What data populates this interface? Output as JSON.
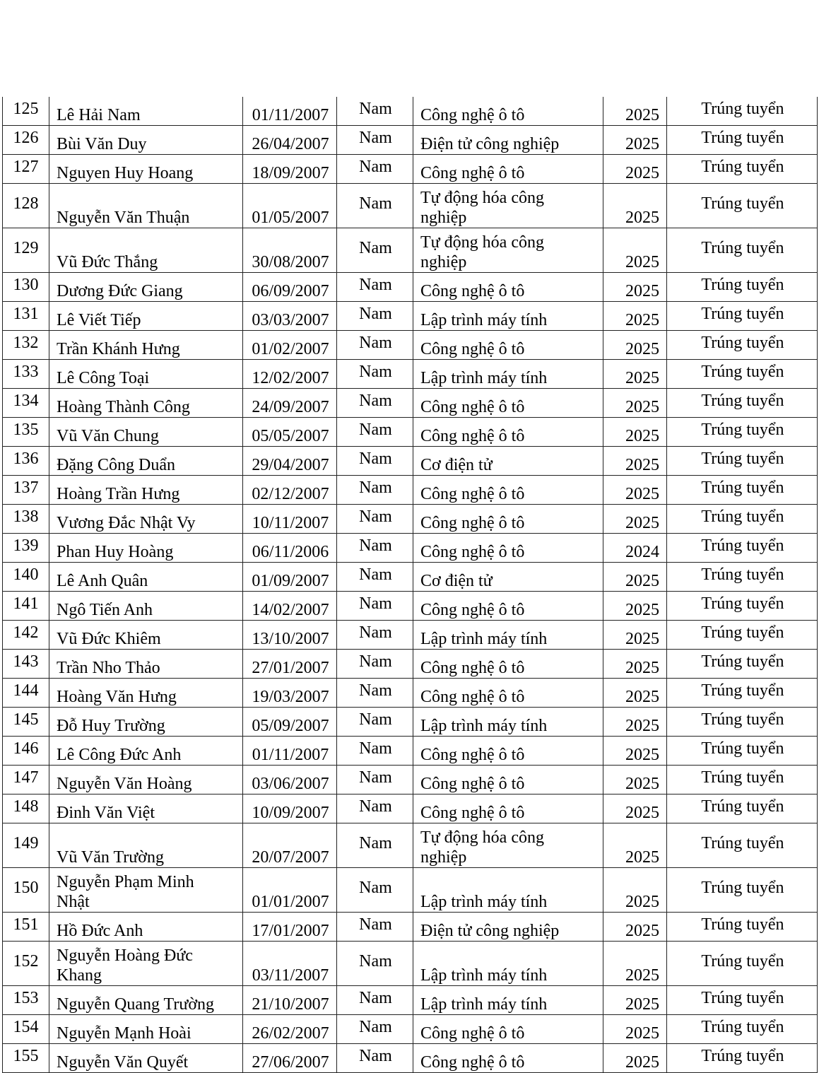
{
  "rows": [
    {
      "no": "125",
      "name": "Lê Hải Nam",
      "dob": "01/11/2007",
      "sex": "Nam",
      "major": "Công nghệ ô tô",
      "year": "2025",
      "result": "Trúng tuyển"
    },
    {
      "no": "126",
      "name": "Bùi Văn Duy",
      "dob": "26/04/2007",
      "sex": "Nam",
      "major": "Điện tử công nghiệp",
      "year": "2025",
      "result": "Trúng tuyển"
    },
    {
      "no": "127",
      "name": "Nguyen Huy Hoang",
      "dob": "18/09/2007",
      "sex": "Nam",
      "major": "Công nghệ ô tô",
      "year": "2025",
      "result": "Trúng tuyển"
    },
    {
      "no": "128",
      "name": "Nguyễn Văn Thuận",
      "dob": "01/05/2007",
      "sex": "Nam",
      "major": "Tự động hóa công nghiệp",
      "year": "2025",
      "result": "Trúng tuyển"
    },
    {
      "no": "129",
      "name": "Vũ Đức Thắng",
      "dob": "30/08/2007",
      "sex": "Nam",
      "major": "Tự động hóa công nghiệp",
      "year": "2025",
      "result": "Trúng tuyển"
    },
    {
      "no": "130",
      "name": "Dương Đức Giang",
      "dob": "06/09/2007",
      "sex": "Nam",
      "major": "Công nghệ ô tô",
      "year": "2025",
      "result": "Trúng tuyển"
    },
    {
      "no": "131",
      "name": "Lê Viết Tiếp",
      "dob": "03/03/2007",
      "sex": "Nam",
      "major": "Lập trình máy tính",
      "year": "2025",
      "result": "Trúng tuyển"
    },
    {
      "no": "132",
      "name": "Trần Khánh Hưng",
      "dob": "01/02/2007",
      "sex": "Nam",
      "major": "Công nghệ ô tô",
      "year": "2025",
      "result": "Trúng tuyển"
    },
    {
      "no": "133",
      "name": "Lê Công Toại",
      "dob": "12/02/2007",
      "sex": "Nam",
      "major": "Lập trình máy tính",
      "year": "2025",
      "result": "Trúng tuyển"
    },
    {
      "no": "134",
      "name": "Hoàng Thành Công",
      "dob": "24/09/2007",
      "sex": "Nam",
      "major": "Công nghệ ô tô",
      "year": "2025",
      "result": "Trúng tuyển"
    },
    {
      "no": "135",
      "name": "Vũ Văn Chung",
      "dob": "05/05/2007",
      "sex": "Nam",
      "major": "Công nghệ ô tô",
      "year": "2025",
      "result": "Trúng tuyển"
    },
    {
      "no": "136",
      "name": "Đặng Công Duẩn",
      "dob": "29/04/2007",
      "sex": "Nam",
      "major": "Cơ điện tử",
      "year": "2025",
      "result": "Trúng tuyển"
    },
    {
      "no": "137",
      "name": "Hoàng Trần Hưng",
      "dob": "02/12/2007",
      "sex": "Nam",
      "major": "Công nghệ ô tô",
      "year": "2025",
      "result": "Trúng tuyển"
    },
    {
      "no": "138",
      "name": "Vương Đắc Nhật Vy",
      "dob": "10/11/2007",
      "sex": "Nam",
      "major": "Công nghệ ô tô",
      "year": "2025",
      "result": "Trúng tuyển"
    },
    {
      "no": "139",
      "name": "Phan Huy Hoàng",
      "dob": "06/11/2006",
      "sex": "Nam",
      "major": "Công nghệ ô tô",
      "year": "2024",
      "result": "Trúng tuyển"
    },
    {
      "no": "140",
      "name": "Lê Anh Quân",
      "dob": "01/09/2007",
      "sex": "Nam",
      "major": "Cơ điện tử",
      "year": "2025",
      "result": "Trúng tuyển"
    },
    {
      "no": "141",
      "name": "Ngô Tiến Anh",
      "dob": "14/02/2007",
      "sex": "Nam",
      "major": "Công nghệ ô tô",
      "year": "2025",
      "result": "Trúng tuyển"
    },
    {
      "no": "142",
      "name": "Vũ Đức Khiêm",
      "dob": "13/10/2007",
      "sex": "Nam",
      "major": "Lập trình máy tính",
      "year": "2025",
      "result": "Trúng tuyển"
    },
    {
      "no": "143",
      "name": "Trần Nho Thảo",
      "dob": "27/01/2007",
      "sex": "Nam",
      "major": "Công nghệ ô tô",
      "year": "2025",
      "result": "Trúng tuyển"
    },
    {
      "no": "144",
      "name": "Hoàng Văn Hưng",
      "dob": "19/03/2007",
      "sex": "Nam",
      "major": "Công nghệ ô tô",
      "year": "2025",
      "result": "Trúng tuyển"
    },
    {
      "no": "145",
      "name": "Đỗ Huy Trường",
      "dob": "05/09/2007",
      "sex": "Nam",
      "major": "Lập trình máy tính",
      "year": "2025",
      "result": "Trúng tuyển"
    },
    {
      "no": "146",
      "name": "Lê Công Đức Anh",
      "dob": "01/11/2007",
      "sex": "Nam",
      "major": "Công nghệ ô tô",
      "year": "2025",
      "result": "Trúng tuyển"
    },
    {
      "no": "147",
      "name": "Nguyễn Văn Hoàng",
      "dob": "03/06/2007",
      "sex": "Nam",
      "major": "Công nghệ ô tô",
      "year": "2025",
      "result": "Trúng tuyển"
    },
    {
      "no": "148",
      "name": "Đinh Văn Việt",
      "dob": "10/09/2007",
      "sex": "Nam",
      "major": "Công nghệ ô tô",
      "year": "2025",
      "result": "Trúng tuyển"
    },
    {
      "no": "149",
      "name": "Vũ Văn Trường",
      "dob": "20/07/2007",
      "sex": "Nam",
      "major": "Tự động hóa công nghiệp",
      "year": "2025",
      "result": "Trúng tuyển"
    },
    {
      "no": "150",
      "name": "Nguyễn Phạm Minh Nhật",
      "dob": "01/01/2007",
      "sex": "Nam",
      "major": "Lập trình máy tính",
      "year": "2025",
      "result": "Trúng tuyển"
    },
    {
      "no": "151",
      "name": "Hồ Đức Anh",
      "dob": "17/01/2007",
      "sex": "Nam",
      "major": "Điện tử công nghiệp",
      "year": "2025",
      "result": "Trúng tuyển"
    },
    {
      "no": "152",
      "name": "Nguyễn Hoàng Đức Khang",
      "dob": "03/11/2007",
      "sex": "Nam",
      "major": "Lập trình máy tính",
      "year": "2025",
      "result": "Trúng tuyển"
    },
    {
      "no": "153",
      "name": "Nguyễn Quang Trường",
      "dob": "21/10/2007",
      "sex": "Nam",
      "major": "Lập trình máy tính",
      "year": "2025",
      "result": "Trúng tuyển"
    },
    {
      "no": "154",
      "name": "Nguyễn Mạnh Hoài",
      "dob": "26/02/2007",
      "sex": "Nam",
      "major": "Công nghệ ô tô",
      "year": "2025",
      "result": "Trúng tuyển"
    },
    {
      "no": "155",
      "name": "Nguyễn Văn Quyết",
      "dob": "27/06/2007",
      "sex": "Nam",
      "major": "Công nghệ ô tô",
      "year": "2025",
      "result": "Trúng tuyển"
    }
  ]
}
